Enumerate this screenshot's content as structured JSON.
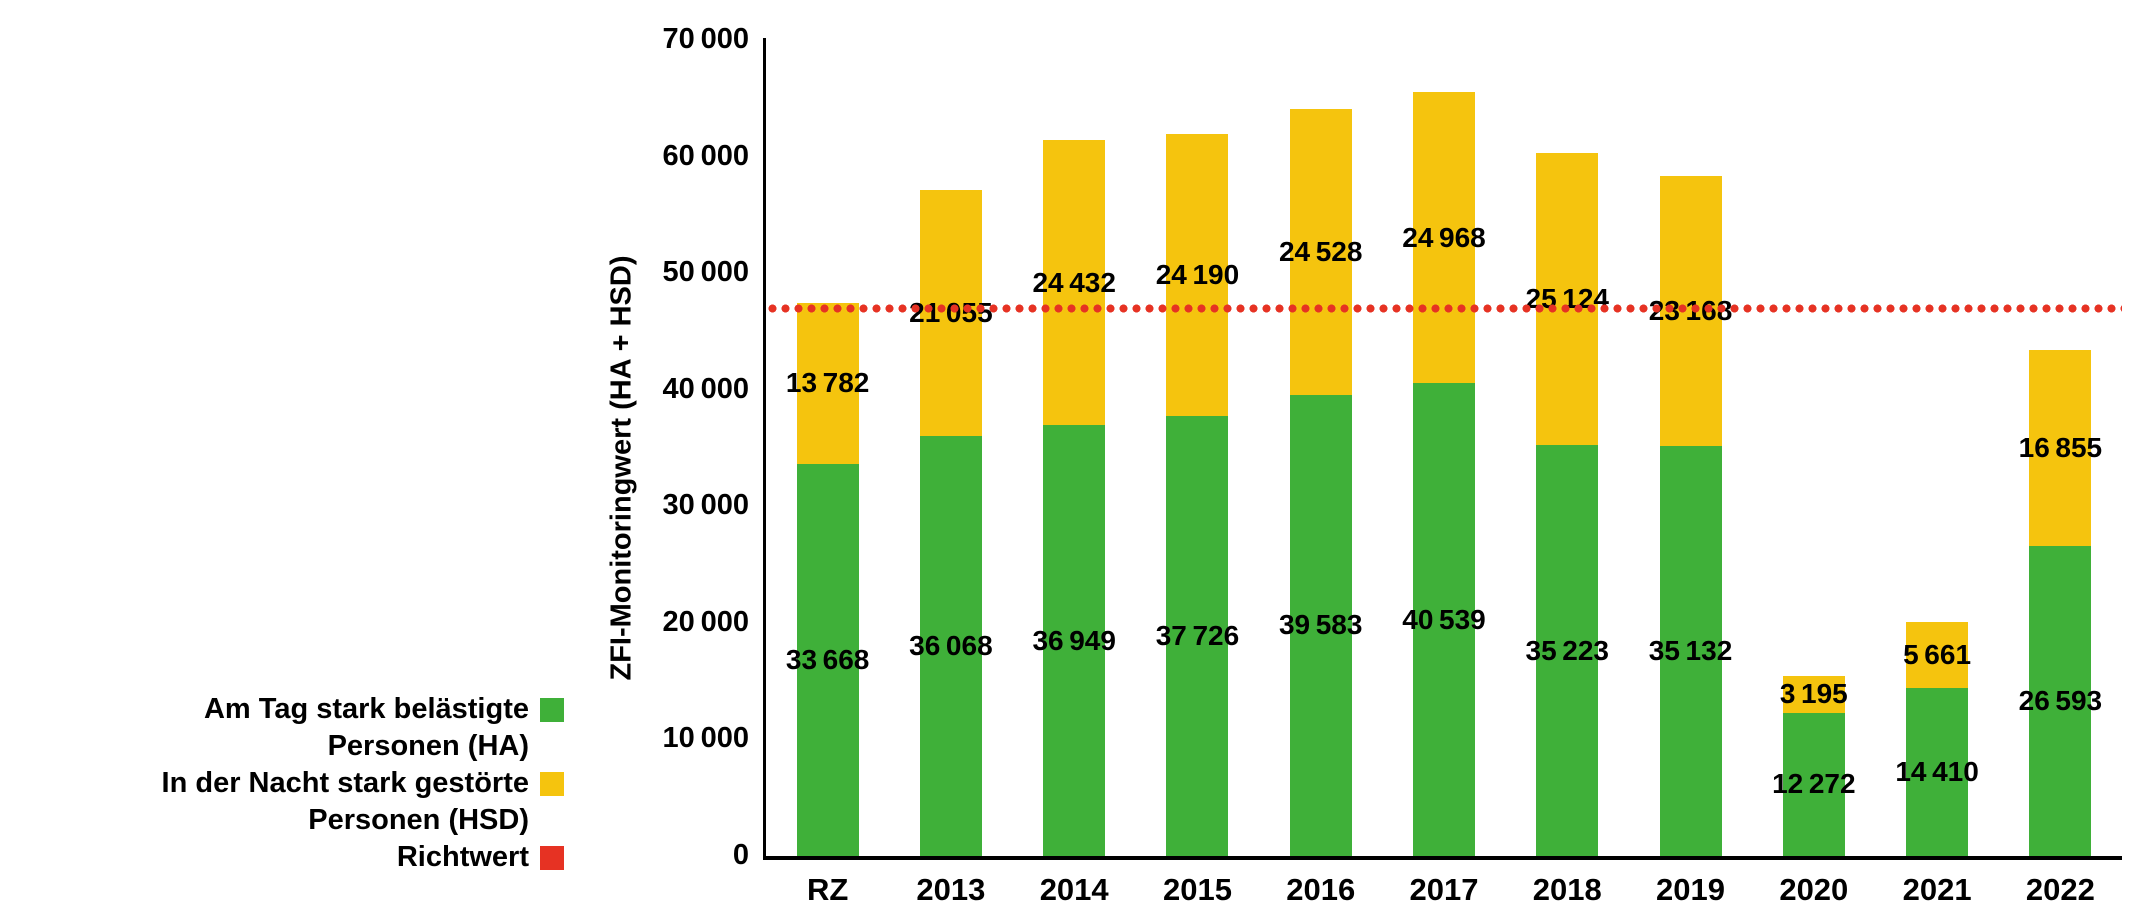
{
  "chart_data": {
    "type": "bar",
    "stacked": true,
    "title": "",
    "categories": [
      "RZ",
      "2013",
      "2014",
      "2015",
      "2016",
      "2017",
      "2018",
      "2019",
      "2020",
      "2021",
      "2022"
    ],
    "series": [
      {
        "name": "Am Tag stark belästigte Personen (HA)",
        "color": "#3fb039",
        "values": [
          33668,
          36068,
          36949,
          37726,
          39583,
          40539,
          35223,
          35132,
          12272,
          14410,
          26593
        ]
      },
      {
        "name": "In der Nacht stark gestörte Personen (HSD)",
        "color": "#f5c40e",
        "values": [
          13782,
          21055,
          24432,
          24190,
          24528,
          24968,
          25124,
          23168,
          3195,
          5661,
          16855
        ]
      }
    ],
    "reference_line": {
      "name": "Richtwert",
      "value": 47000,
      "color": "#e63223"
    },
    "xlabel": "",
    "ylabel": "ZFI-Monitoringwert (HA + HSD)",
    "ylim": [
      0,
      70000
    ],
    "yticks": [
      0,
      10000,
      20000,
      30000,
      40000,
      50000,
      60000,
      70000
    ],
    "grid": false,
    "legend_position": "bottom-left",
    "bar_value_labels": true
  },
  "legend": {
    "items": [
      {
        "label_lines": [
          "Am Tag stark belästigte",
          "Personen (HA)"
        ],
        "color": "#3fb039"
      },
      {
        "label_lines": [
          "In der Nacht stark gestörte",
          "Personen (HSD)"
        ],
        "color": "#f5c40e"
      },
      {
        "label_lines": [
          "Richtwert"
        ],
        "color": "#e63223"
      }
    ]
  }
}
